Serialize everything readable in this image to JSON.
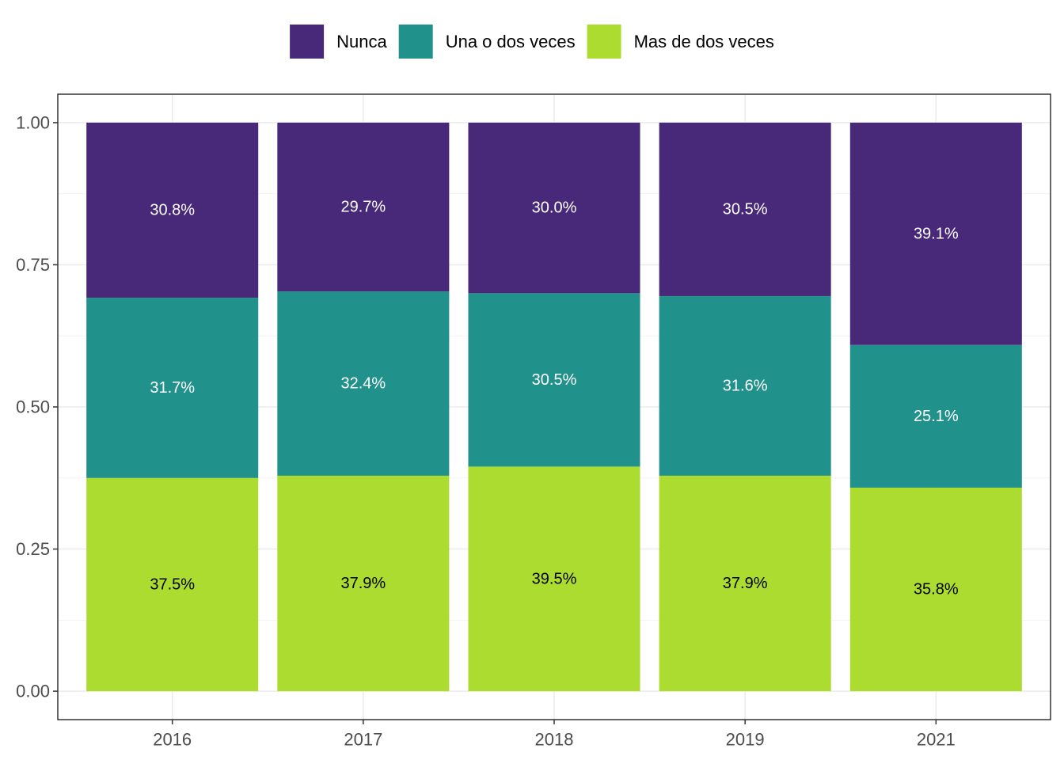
{
  "chart_data": {
    "type": "bar",
    "stacked": true,
    "categories": [
      "2016",
      "2017",
      "2018",
      "2019",
      "2021"
    ],
    "series": [
      {
        "name": "Mas de dos veces",
        "color": "#addc30",
        "values": [
          0.375,
          0.379,
          0.395,
          0.379,
          0.358
        ],
        "labels": [
          "37.5%",
          "37.9%",
          "39.5%",
          "37.9%",
          "35.8%"
        ],
        "label_color": "#000000"
      },
      {
        "name": "Una o dos veces",
        "color": "#21918c",
        "values": [
          0.317,
          0.324,
          0.305,
          0.316,
          0.251
        ],
        "labels": [
          "31.7%",
          "32.4%",
          "30.5%",
          "31.6%",
          "25.1%"
        ],
        "label_color": "#ffffff"
      },
      {
        "name": "Nunca",
        "color": "#482878",
        "values": [
          0.308,
          0.297,
          0.3,
          0.305,
          0.391
        ],
        "labels": [
          "30.8%",
          "29.7%",
          "30.0%",
          "30.5%",
          "39.1%"
        ],
        "label_color": "#ffffff"
      }
    ],
    "legend_order": [
      "Nunca",
      "Una o dos veces",
      "Mas de dos veces"
    ],
    "legend_position": "top",
    "ylim": [
      -0.05,
      1.05
    ],
    "yticks": [
      0.0,
      0.25,
      0.5,
      0.75,
      1.0
    ],
    "ytick_labels": [
      "0.00",
      "0.25",
      "0.50",
      "0.75",
      "1.00"
    ],
    "xlabel": "",
    "ylabel": "",
    "title": "",
    "grid": true
  }
}
